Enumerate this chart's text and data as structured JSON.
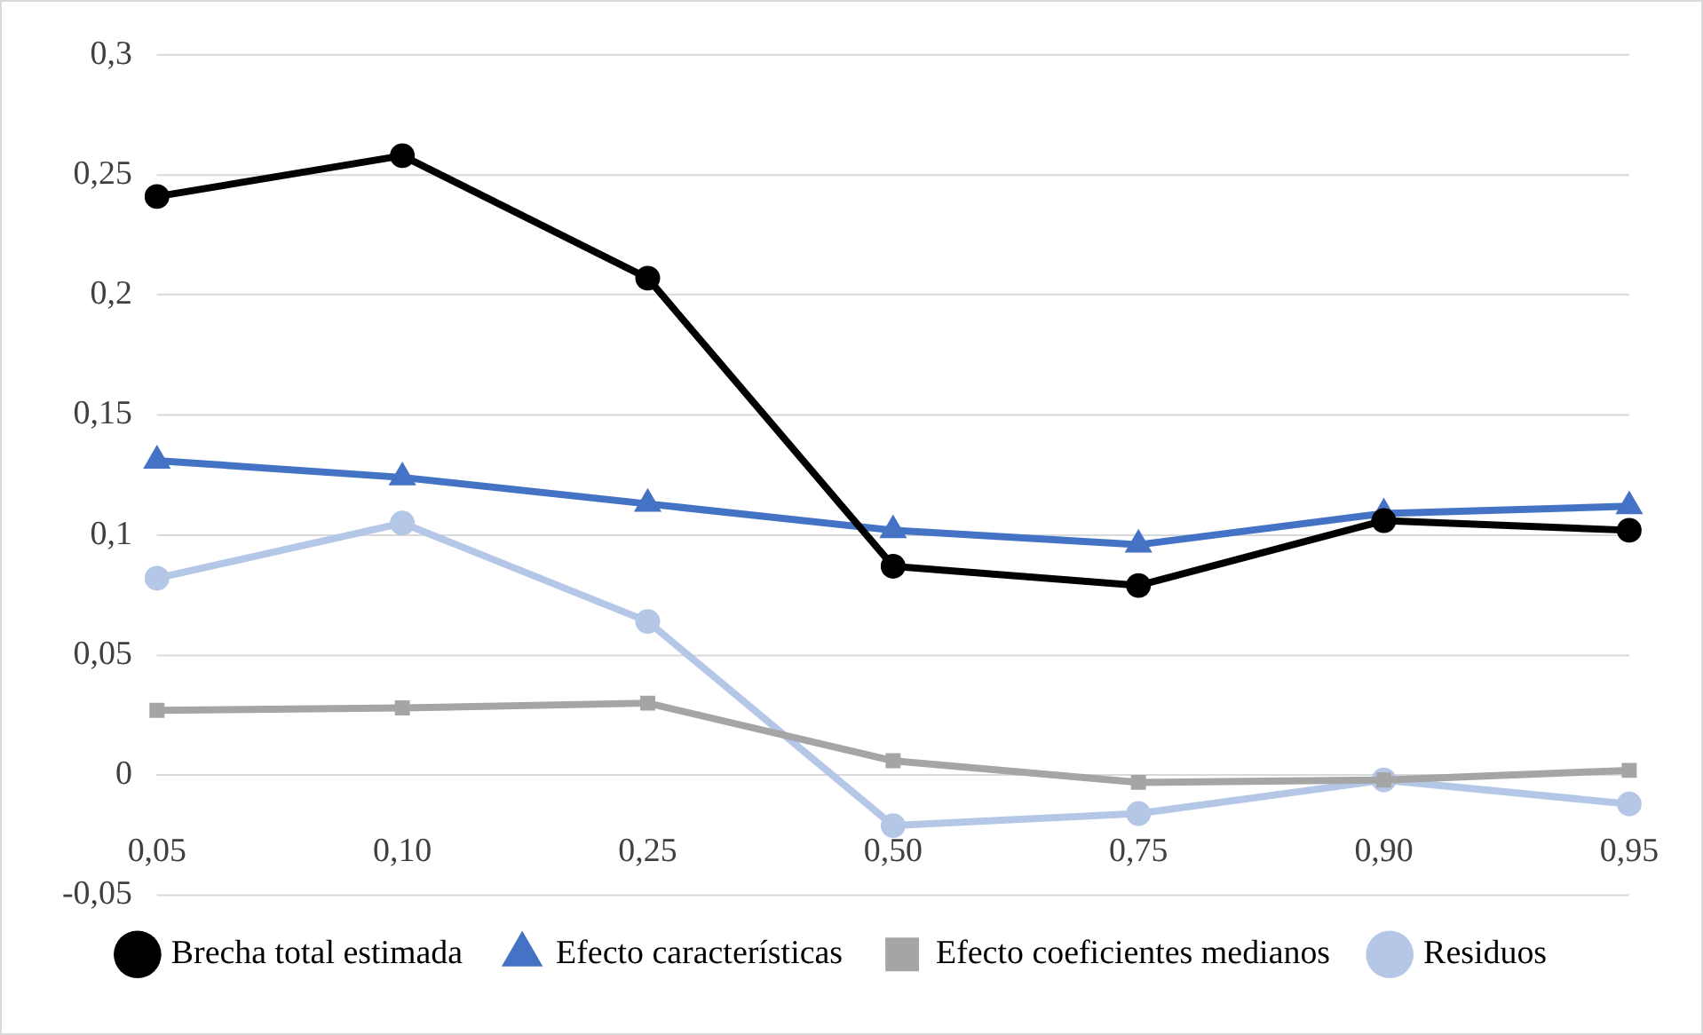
{
  "chart_data": {
    "type": "line",
    "categories": [
      "0,05",
      "0,10",
      "0,25",
      "0,50",
      "0,75",
      "0,90",
      "0,95"
    ],
    "series": [
      {
        "name": "Brecha total estimada",
        "color": "#000000",
        "marker": "circle",
        "values": [
          0.241,
          0.258,
          0.207,
          0.087,
          0.079,
          0.106,
          0.102
        ]
      },
      {
        "name": "Efecto características",
        "color": "#4472c4",
        "marker": "triangle",
        "values": [
          0.131,
          0.124,
          0.113,
          0.102,
          0.096,
          0.109,
          0.112
        ]
      },
      {
        "name": "Efecto coeficientes medianos",
        "color": "#a5a5a5",
        "marker": "square",
        "values": [
          0.027,
          0.028,
          0.03,
          0.006,
          -0.003,
          -0.002,
          0.002
        ]
      },
      {
        "name": "Residuos",
        "color": "#b4c7e7",
        "marker": "circle",
        "values": [
          0.082,
          0.105,
          0.064,
          -0.021,
          -0.016,
          -0.002,
          -0.012
        ]
      }
    ],
    "ylim": [
      -0.05,
      0.3
    ],
    "yticks": [
      {
        "value": -0.05,
        "label": "-0,05"
      },
      {
        "value": 0,
        "label": "0"
      },
      {
        "value": 0.05,
        "label": "0,05"
      },
      {
        "value": 0.1,
        "label": "0,1"
      },
      {
        "value": 0.15,
        "label": "0,15"
      },
      {
        "value": 0.2,
        "label": "0,2"
      },
      {
        "value": 0.25,
        "label": "0,25"
      },
      {
        "value": 0.3,
        "label": "0,3"
      }
    ],
    "grid": "y",
    "legend": "bottom",
    "line_style": "solid"
  }
}
